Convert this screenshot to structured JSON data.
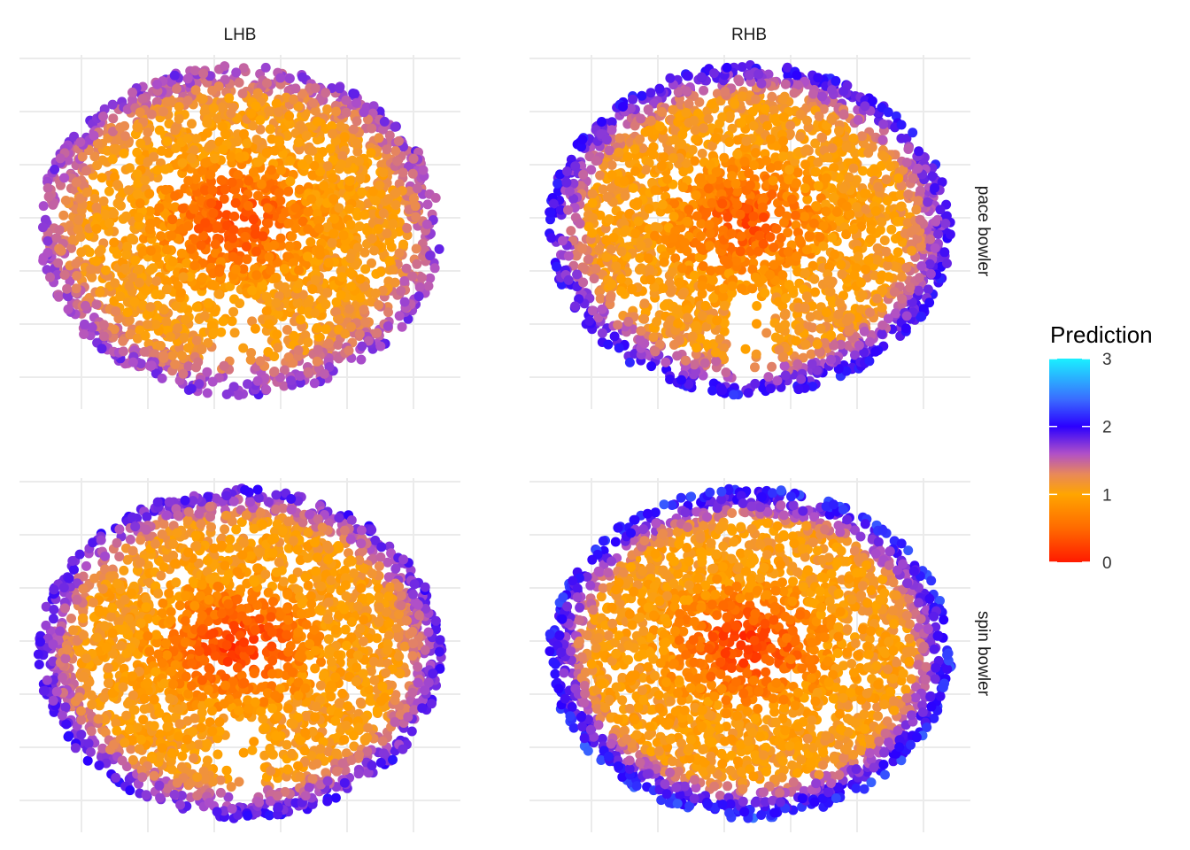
{
  "chart_data": {
    "type": "scatter",
    "description_free": true,
    "facet_columns": [
      "LHB",
      "RHB"
    ],
    "facet_rows": [
      "pace bowler",
      "spin bowler"
    ],
    "color_scale": {
      "title": "Prediction",
      "min": 0,
      "max": 3,
      "ticks": [
        0,
        1,
        2,
        3
      ],
      "stops": [
        {
          "value": 0,
          "color": "#ff1a00"
        },
        {
          "value": 0.5,
          "color": "#ff6a00"
        },
        {
          "value": 1,
          "color": "#ffa500"
        },
        {
          "value": 1.3,
          "color": "#e8885a"
        },
        {
          "value": 1.6,
          "color": "#b050c8"
        },
        {
          "value": 2,
          "color": "#2b00ff"
        },
        {
          "value": 2.4,
          "color": "#3a6cff"
        },
        {
          "value": 3,
          "color": "#1af0ff"
        }
      ]
    },
    "grid": true,
    "legend_position": "right",
    "panels": [
      {
        "column": "LHB",
        "row": "pace bowler",
        "center_value": 0.2,
        "edge_value": 1.7,
        "ring_value": 1.2,
        "gap_bottom": true
      },
      {
        "column": "RHB",
        "row": "pace bowler",
        "center_value": 0.3,
        "edge_value": 2.0,
        "ring_value": 1.2,
        "gap_bottom": true
      },
      {
        "column": "LHB",
        "row": "spin bowler",
        "center_value": 0.1,
        "edge_value": 1.9,
        "ring_value": 1.1,
        "gap_bottom": true
      },
      {
        "column": "RHB",
        "row": "spin bowler",
        "center_value": 0.1,
        "edge_value": 2.2,
        "ring_value": 1.1,
        "gap_bottom": false
      }
    ]
  }
}
